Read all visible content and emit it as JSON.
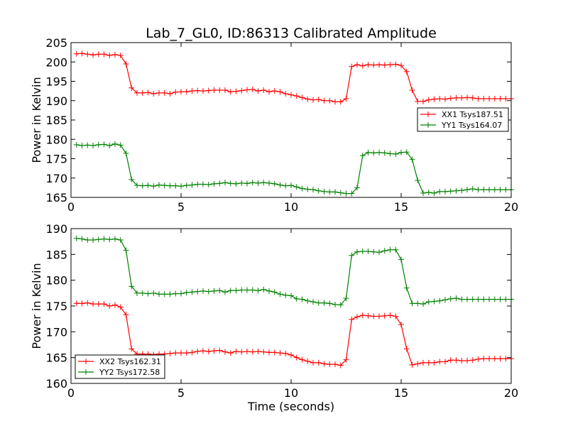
{
  "figure": {
    "title": "Lab_7_GL0, ID:86313 Calibrated Amplitude",
    "colors": {
      "red": "#ff0000",
      "green": "#008000"
    }
  },
  "chart_data": [
    {
      "type": "line",
      "title": "Lab_7_GL0, ID:86313 Calibrated Amplitude",
      "xlabel": "",
      "ylabel": "Power in Kelvin",
      "xlim": [
        0,
        20
      ],
      "ylim": [
        165,
        205
      ],
      "xticks": [
        0,
        5,
        10,
        15,
        20
      ],
      "yticks": [
        165,
        170,
        175,
        180,
        185,
        190,
        195,
        200,
        205
      ],
      "grid": false,
      "legend": "center-right",
      "x": [
        0.25,
        0.5,
        0.75,
        1.0,
        1.25,
        1.5,
        1.75,
        2.0,
        2.25,
        2.5,
        2.75,
        3.0,
        3.25,
        3.5,
        3.75,
        4.0,
        4.25,
        4.5,
        4.75,
        5.0,
        5.25,
        5.5,
        5.75,
        6.0,
        6.25,
        6.5,
        6.75,
        7.0,
        7.25,
        7.5,
        7.75,
        8.0,
        8.25,
        8.5,
        8.75,
        9.0,
        9.25,
        9.5,
        9.75,
        10.0,
        10.25,
        10.5,
        10.75,
        11.0,
        11.25,
        11.5,
        11.75,
        12.0,
        12.25,
        12.5,
        12.75,
        13.0,
        13.25,
        13.5,
        13.75,
        14.0,
        14.25,
        14.5,
        14.75,
        15.0,
        15.25,
        15.5,
        15.75,
        16.0,
        16.25,
        16.5,
        16.75,
        17.0,
        17.25,
        17.5,
        17.75,
        18.0,
        18.25,
        18.5,
        18.75,
        19.0,
        19.25,
        19.5,
        19.75,
        20.0
      ],
      "series": [
        {
          "name": "XX1 Tsys187.51",
          "color": "#ff0000",
          "values": [
            202.1,
            202.2,
            202.0,
            201.8,
            202.0,
            202.0,
            201.7,
            201.9,
            201.7,
            199.5,
            193.3,
            192.0,
            192.0,
            192.1,
            191.8,
            192.0,
            192.0,
            191.8,
            192.2,
            192.3,
            192.3,
            192.5,
            192.6,
            192.5,
            192.6,
            192.7,
            192.7,
            192.7,
            192.3,
            192.4,
            192.6,
            192.8,
            192.9,
            192.5,
            192.7,
            192.3,
            192.5,
            192.3,
            191.8,
            191.5,
            191.2,
            190.8,
            190.4,
            190.2,
            190.3,
            190.0,
            190.0,
            189.7,
            189.7,
            190.5,
            198.8,
            199.3,
            199.0,
            199.3,
            199.2,
            199.3,
            199.2,
            199.3,
            199.4,
            199.1,
            197.5,
            192.7,
            189.8,
            189.8,
            190.2,
            190.4,
            190.5,
            190.4,
            190.6,
            190.7,
            190.7,
            190.8,
            190.7,
            190.5,
            190.5,
            190.5,
            190.5,
            190.5,
            190.5,
            190.5
          ]
        },
        {
          "name": "YY1 Tsys164.07",
          "color": "#008000",
          "values": [
            178.6,
            178.4,
            178.5,
            178.4,
            178.6,
            178.7,
            178.4,
            178.8,
            178.5,
            176.4,
            169.6,
            168.1,
            168.0,
            168.1,
            167.9,
            168.2,
            168.1,
            168.0,
            168.0,
            167.9,
            168.1,
            168.2,
            168.4,
            168.4,
            168.3,
            168.5,
            168.6,
            168.8,
            168.6,
            168.5,
            168.7,
            168.6,
            168.8,
            168.7,
            168.8,
            168.7,
            168.5,
            168.2,
            168.0,
            168.1,
            167.7,
            167.3,
            167.1,
            167.0,
            166.7,
            166.5,
            166.4,
            166.4,
            166.2,
            166.0,
            166.0,
            167.5,
            175.8,
            176.6,
            176.5,
            176.6,
            176.5,
            176.3,
            176.2,
            176.6,
            176.7,
            174.8,
            169.4,
            166.1,
            166.3,
            166.1,
            166.5,
            166.5,
            166.6,
            166.7,
            166.8,
            167.0,
            167.2,
            167.0,
            167.0,
            167.0,
            167.0,
            167.0,
            167.0,
            167.0
          ]
        }
      ]
    },
    {
      "type": "line",
      "title": "",
      "xlabel": "Time (seconds)",
      "ylabel": "Power in Kelvin",
      "xlim": [
        0,
        20
      ],
      "ylim": [
        160,
        190
      ],
      "xticks": [
        0,
        5,
        10,
        15,
        20
      ],
      "yticks": [
        160,
        165,
        170,
        175,
        180,
        185,
        190
      ],
      "grid": false,
      "legend": "lower-left",
      "x": [
        0.25,
        0.5,
        0.75,
        1.0,
        1.25,
        1.5,
        1.75,
        2.0,
        2.25,
        2.5,
        2.75,
        3.0,
        3.25,
        3.5,
        3.75,
        4.0,
        4.25,
        4.5,
        4.75,
        5.0,
        5.25,
        5.5,
        5.75,
        6.0,
        6.25,
        6.5,
        6.75,
        7.0,
        7.25,
        7.5,
        7.75,
        8.0,
        8.25,
        8.5,
        8.75,
        9.0,
        9.25,
        9.5,
        9.75,
        10.0,
        10.25,
        10.5,
        10.75,
        11.0,
        11.25,
        11.5,
        11.75,
        12.0,
        12.25,
        12.5,
        12.75,
        13.0,
        13.25,
        13.5,
        13.75,
        14.0,
        14.25,
        14.5,
        14.75,
        15.0,
        15.25,
        15.5,
        15.75,
        16.0,
        16.25,
        16.5,
        16.75,
        17.0,
        17.25,
        17.5,
        17.75,
        18.0,
        18.25,
        18.5,
        18.75,
        19.0,
        19.25,
        19.5,
        19.75,
        20.0
      ],
      "series": [
        {
          "name": "XX2 Tsys162.31",
          "color": "#ff0000",
          "values": [
            175.5,
            175.5,
            175.6,
            175.4,
            175.4,
            175.4,
            175.0,
            175.2,
            174.8,
            173.3,
            166.7,
            165.7,
            165.7,
            165.7,
            165.6,
            165.7,
            165.7,
            165.8,
            165.9,
            165.9,
            165.9,
            166.0,
            166.2,
            166.3,
            166.2,
            166.3,
            166.4,
            166.1,
            165.9,
            166.2,
            166.1,
            166.2,
            166.1,
            166.2,
            166.1,
            166.0,
            166.0,
            165.9,
            165.8,
            165.5,
            165.0,
            164.6,
            164.3,
            164.0,
            164.0,
            163.8,
            163.7,
            163.7,
            163.5,
            164.6,
            172.4,
            172.9,
            173.2,
            173.1,
            173.0,
            173.0,
            173.1,
            173.2,
            173.0,
            171.4,
            166.7,
            163.6,
            163.8,
            164.0,
            164.0,
            164.0,
            164.2,
            164.2,
            164.5,
            164.5,
            164.4,
            164.4,
            164.5,
            164.7,
            164.8,
            164.8,
            164.8,
            164.8,
            164.8,
            164.8
          ]
        },
        {
          "name": "YY2 Tsys172.58",
          "color": "#008000",
          "values": [
            188.1,
            188.0,
            187.8,
            187.8,
            187.9,
            188.0,
            187.9,
            188.0,
            187.8,
            185.8,
            178.8,
            177.5,
            177.5,
            177.4,
            177.5,
            177.3,
            177.3,
            177.3,
            177.4,
            177.4,
            177.6,
            177.7,
            177.8,
            177.9,
            177.8,
            177.9,
            178.0,
            177.7,
            178.0,
            178.0,
            178.1,
            178.1,
            178.1,
            178.0,
            178.2,
            177.9,
            177.7,
            177.3,
            177.1,
            177.0,
            176.4,
            176.3,
            176.0,
            175.8,
            175.6,
            175.6,
            175.5,
            175.3,
            175.2,
            176.5,
            184.8,
            185.5,
            185.6,
            185.6,
            185.5,
            185.4,
            185.7,
            185.9,
            185.9,
            184.0,
            178.5,
            175.5,
            175.5,
            175.4,
            175.8,
            175.9,
            176.0,
            176.2,
            176.4,
            176.5,
            176.3,
            176.3,
            176.3,
            176.3,
            176.3,
            176.3,
            176.3,
            176.3,
            176.3,
            176.3
          ]
        }
      ]
    }
  ]
}
